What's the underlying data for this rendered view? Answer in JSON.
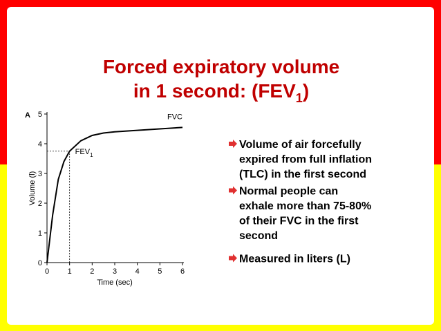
{
  "title": {
    "line1": "Forced expiratory volume",
    "line2": "in 1 second: (FEV",
    "line2_sub": "1",
    "line2_end": ")"
  },
  "bullets": [
    [
      "Volume of air forcefully",
      "expired from full inflation",
      "(TLC) in the first second"
    ],
    [
      "Normal people can",
      "exhale more than 75-80%",
      "of their FVC in the first",
      "second"
    ],
    [
      "Measured in liters (L)"
    ]
  ],
  "chart_data": {
    "type": "line",
    "panel_label": "A",
    "x_label": "Time (sec)",
    "y_label": "Volume (l)",
    "x": [
      0,
      0.25,
      0.5,
      0.75,
      1,
      1.5,
      2,
      2.5,
      3,
      4,
      5,
      6
    ],
    "series": [
      {
        "name": "FVC",
        "color": "#000000",
        "values": [
          0,
          1.6,
          2.8,
          3.4,
          3.75,
          4.1,
          4.28,
          4.36,
          4.4,
          4.45,
          4.5,
          4.55
        ]
      }
    ],
    "annotations": [
      {
        "text": "FEV",
        "sub": "1"
      }
    ],
    "xlim": [
      0,
      6
    ],
    "ylim": [
      0,
      5
    ],
    "xticks": [
      0,
      1,
      2,
      3,
      4,
      5,
      6
    ],
    "yticks": [
      0,
      1,
      2,
      3,
      4,
      5
    ]
  }
}
